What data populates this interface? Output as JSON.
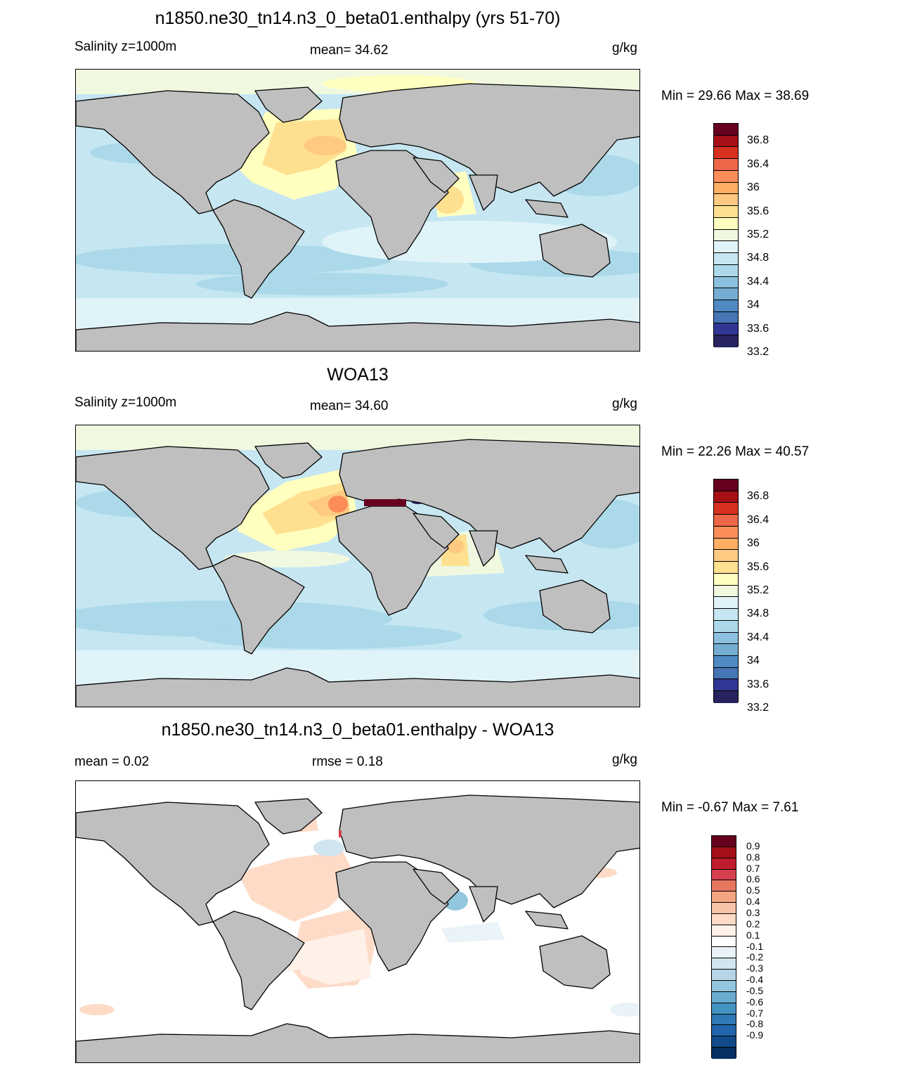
{
  "panels": [
    {
      "title": "n1850.ne30_tn14.n3_0_beta01.enthalpy (yrs 51-70)",
      "left_label": "Salinity z=1000m",
      "center_label": "mean=  34.62",
      "units": "g/kg",
      "minmax": "Min =  29.66 Max =  38.69",
      "colorbar": {
        "colors": [
          "#67001f",
          "#a50f15",
          "#d7301f",
          "#ef6548",
          "#fc8d59",
          "#fdae61",
          "#fec980",
          "#fee090",
          "#ffffbf",
          "#f0f9e0",
          "#e0f3f8",
          "#c6e7f2",
          "#abd9e9",
          "#8cc0e0",
          "#74add1",
          "#4f8ac3",
          "#4575b4",
          "#313695",
          "#26235e"
        ],
        "labels": [
          "36.8",
          "36.4",
          "36",
          "35.6",
          "35.2",
          "34.8",
          "34.4",
          "34",
          "33.6",
          "33.2"
        ]
      },
      "chart_data": {
        "type": "heatmap",
        "variable": "Salinity",
        "depth": "z=1000m",
        "units": "g/kg",
        "mean": 34.62,
        "min": 29.66,
        "max": 38.69,
        "levels": [
          33.2,
          33.4,
          33.6,
          33.8,
          34.0,
          34.2,
          34.4,
          34.6,
          34.8,
          35.0,
          35.2,
          35.4,
          35.6,
          35.8,
          36.0,
          36.2,
          36.4,
          36.6,
          36.8
        ]
      }
    },
    {
      "title": "WOA13",
      "left_label": "Salinity z=1000m",
      "center_label": "mean=  34.60",
      "units": "g/kg",
      "minmax": "Min =  22.26 Max =  40.57",
      "colorbar": {
        "colors": [
          "#67001f",
          "#a50f15",
          "#d7301f",
          "#ef6548",
          "#fc8d59",
          "#fdae61",
          "#fec980",
          "#fee090",
          "#ffffbf",
          "#f0f9e0",
          "#e0f3f8",
          "#c6e7f2",
          "#abd9e9",
          "#8cc0e0",
          "#74add1",
          "#4f8ac3",
          "#4575b4",
          "#313695",
          "#26235e"
        ],
        "labels": [
          "36.8",
          "36.4",
          "36",
          "35.6",
          "35.2",
          "34.8",
          "34.4",
          "34",
          "33.6",
          "33.2"
        ]
      },
      "chart_data": {
        "type": "heatmap",
        "variable": "Salinity",
        "depth": "z=1000m",
        "units": "g/kg",
        "mean": 34.6,
        "min": 22.26,
        "max": 40.57,
        "levels": [
          33.2,
          33.4,
          33.6,
          33.8,
          34.0,
          34.2,
          34.4,
          34.6,
          34.8,
          35.0,
          35.2,
          35.4,
          35.6,
          35.8,
          36.0,
          36.2,
          36.4,
          36.6,
          36.8
        ]
      }
    },
    {
      "title": "n1850.ne30_tn14.n3_0_beta01.enthalpy - WOA13",
      "left_label": "mean =   0.02",
      "center_label": "rmse =   0.18",
      "units": "g/kg",
      "minmax": "Min =  -0.67 Max =   7.61",
      "colorbar": {
        "colors": [
          "#67001f",
          "#a50f15",
          "#bf1d2d",
          "#d6404e",
          "#e7765f",
          "#f4a582",
          "#f8c4a8",
          "#fddbc7",
          "#fff0e8",
          "#ffffff",
          "#e9f3f8",
          "#d1e5f0",
          "#b6d6e8",
          "#92c5de",
          "#6aacd0",
          "#4393c3",
          "#2d78b5",
          "#2166ac",
          "#124a8a",
          "#053061"
        ],
        "labels": [
          "0.9",
          "0.8",
          "0.7",
          "0.6",
          "0.5",
          "0.4",
          "0.3",
          "0.2",
          "0.1",
          "-0.1",
          "-0.2",
          "-0.3",
          "-0.4",
          "-0.5",
          "-0.6",
          "-0.7",
          "-0.8",
          "-0.9"
        ]
      },
      "chart_data": {
        "type": "heatmap",
        "variable": "Salinity difference",
        "units": "g/kg",
        "mean": 0.02,
        "rmse": 0.18,
        "min": -0.67,
        "max": 7.61,
        "levels": [
          -0.9,
          -0.8,
          -0.7,
          -0.6,
          -0.5,
          -0.4,
          -0.3,
          -0.2,
          -0.1,
          0.1,
          0.2,
          0.3,
          0.4,
          0.5,
          0.6,
          0.7,
          0.8,
          0.9
        ]
      }
    }
  ]
}
